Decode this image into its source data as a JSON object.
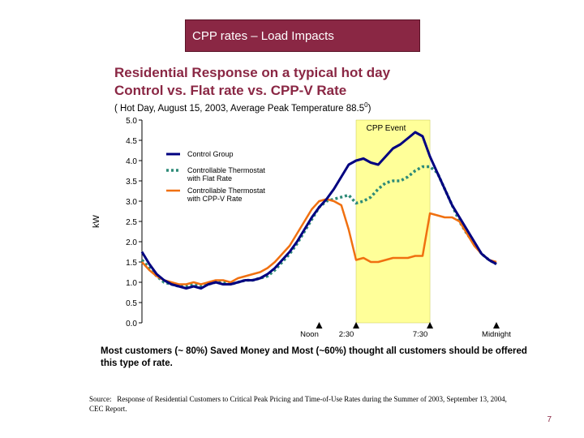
{
  "banner": {
    "title": "CPP rates – Load Impacts"
  },
  "heading": {
    "line1": "Residential Response on a typical hot day",
    "line2": "Control vs. Flat rate  vs.  CPP-V Rate"
  },
  "subheading": {
    "text": "( Hot Day, August 15, 2003, Average Peak Temperature 88.5",
    "sup": "0",
    "end": ")"
  },
  "summary": "Most customers (~ 80%) Saved Money and Most (~60%) thought all customers should be offered this type of rate.",
  "source": {
    "label": "Source:",
    "text": "Response of Residential Customers to Critical Peak Pricing and Time-of-Use Rates during the Summer of 2003, September 13, 2004, CEC Report."
  },
  "page_number": "7",
  "colors": {
    "control": "#000080",
    "flat": "#2e8b78",
    "cppv": "#f07010",
    "event": "#ffff99"
  },
  "chart_data": {
    "type": "line",
    "ylabel": "kW",
    "ylim": [
      0,
      5
    ],
    "yticks": [
      "0.0",
      "0.5",
      "1.0",
      "1.5",
      "2.0",
      "2.5",
      "3.0",
      "3.5",
      "4.0",
      "4.5",
      "5.0"
    ],
    "xlim": [
      0,
      24
    ],
    "x_markers": [
      {
        "x": 12,
        "label": "Noon"
      },
      {
        "x": 14.5,
        "label": "2:30"
      },
      {
        "x": 19.5,
        "label": "7:30"
      },
      {
        "x": 24,
        "label": "Midnight"
      }
    ],
    "event": {
      "start": 14.5,
      "end": 19.5,
      "label": "CPP Event"
    },
    "legend": [
      "Control Group",
      "Controllable Thermostat with Flat Rate",
      "Controllable Thermostat with CPP-V Rate"
    ],
    "x": [
      0,
      0.5,
      1,
      1.5,
      2,
      2.5,
      3,
      3.5,
      4,
      4.5,
      5,
      5.5,
      6,
      6.5,
      7,
      7.5,
      8,
      8.5,
      9,
      9.5,
      10,
      10.5,
      11,
      11.5,
      12,
      12.5,
      13,
      13.5,
      14,
      14.5,
      15,
      15.5,
      16,
      16.5,
      17,
      17.5,
      18,
      18.5,
      19,
      19.5,
      20,
      20.5,
      21,
      21.5,
      22,
      22.5,
      23,
      23.5,
      24
    ],
    "series": [
      {
        "name": "Control Group",
        "style": "solid",
        "values": [
          1.75,
          1.45,
          1.2,
          1.05,
          0.95,
          0.9,
          0.85,
          0.9,
          0.85,
          0.95,
          1.0,
          0.95,
          0.95,
          1.0,
          1.05,
          1.05,
          1.1,
          1.2,
          1.35,
          1.55,
          1.75,
          2.0,
          2.3,
          2.6,
          2.85,
          3.05,
          3.3,
          3.6,
          3.9,
          4.0,
          4.05,
          3.95,
          3.9,
          4.1,
          4.3,
          4.4,
          4.55,
          4.7,
          4.6,
          4.1,
          3.7,
          3.3,
          2.9,
          2.6,
          2.3,
          2.0,
          1.7,
          1.55,
          1.45
        ]
      },
      {
        "name": "Controllable Thermostat with Flat Rate",
        "style": "dotted",
        "values": [
          1.55,
          1.35,
          1.15,
          1.0,
          0.95,
          0.9,
          0.9,
          0.95,
          0.9,
          0.95,
          1.0,
          1.0,
          0.95,
          1.0,
          1.05,
          1.05,
          1.1,
          1.15,
          1.3,
          1.5,
          1.7,
          1.95,
          2.25,
          2.55,
          2.85,
          3.0,
          3.05,
          3.1,
          3.15,
          2.95,
          3.0,
          3.1,
          3.3,
          3.45,
          3.5,
          3.5,
          3.6,
          3.75,
          3.85,
          3.85,
          3.7,
          3.3,
          2.9,
          2.5,
          2.2,
          1.95,
          1.7,
          1.55,
          1.45
        ]
      },
      {
        "name": "Controllable Thermostat with CPP-V Rate",
        "style": "solid",
        "values": [
          1.5,
          1.3,
          1.15,
          1.05,
          1.0,
          0.95,
          0.95,
          1.0,
          0.95,
          1.0,
          1.05,
          1.05,
          1.0,
          1.1,
          1.15,
          1.2,
          1.25,
          1.35,
          1.5,
          1.7,
          1.9,
          2.2,
          2.5,
          2.8,
          3.0,
          3.05,
          3.0,
          2.9,
          2.3,
          1.55,
          1.6,
          1.5,
          1.5,
          1.55,
          1.6,
          1.6,
          1.6,
          1.65,
          1.65,
          2.7,
          2.65,
          2.6,
          2.6,
          2.5,
          2.2,
          1.9,
          1.7,
          1.55,
          1.5
        ]
      }
    ]
  }
}
